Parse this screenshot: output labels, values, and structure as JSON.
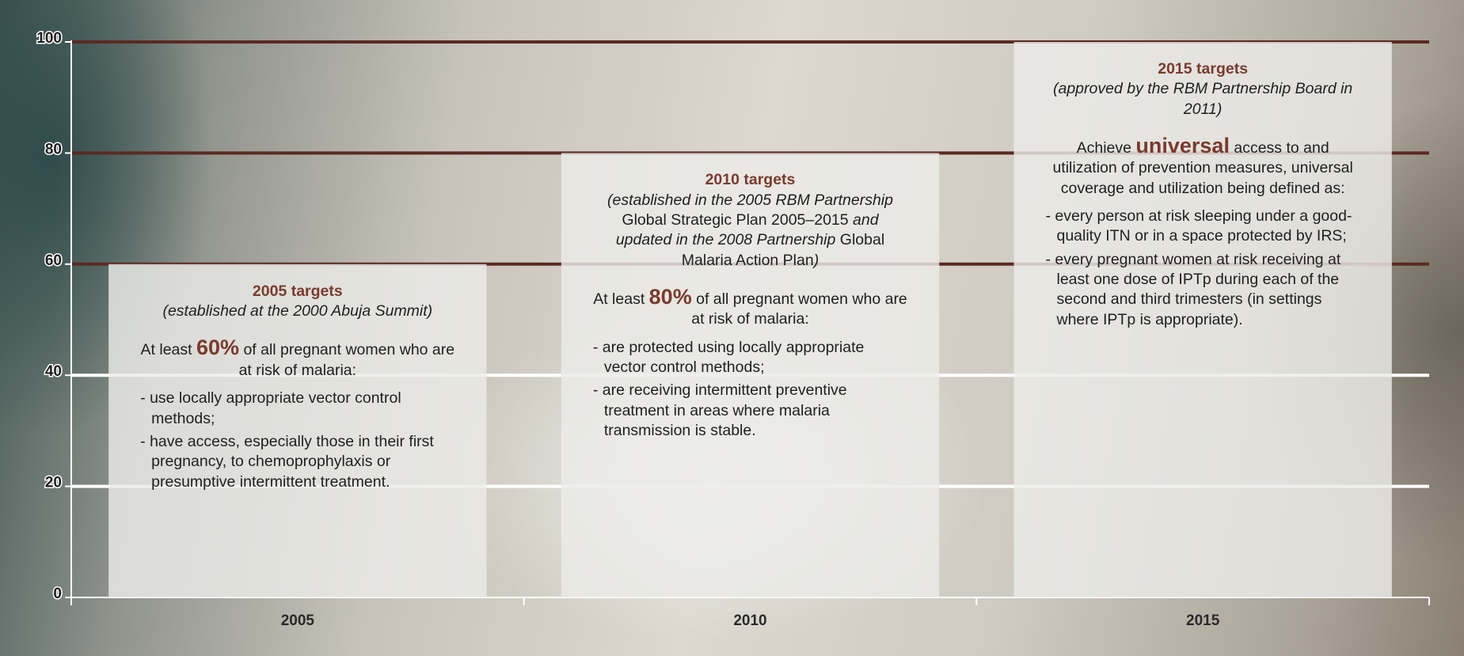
{
  "chart_data": {
    "type": "bar",
    "categories": [
      "2005",
      "2010",
      "2015"
    ],
    "values": [
      60,
      80,
      100
    ],
    "color": "rgba(236,236,232,0.82)",
    "ylim": [
      0,
      100
    ],
    "yticks": [
      0,
      20,
      40,
      60,
      80,
      100
    ],
    "grid": true,
    "grid_colors": [
      null,
      "#ffffff",
      "#ffffff",
      "#5a2a22",
      "#5a2a22",
      "#5a2a22"
    ],
    "annotations": [
      {
        "heading": "2005 targets",
        "subtitle": [
          {
            "text": "(established at the 2000 Abuja Summit)",
            "italic": true
          }
        ],
        "intro": {
          "before": "At least ",
          "highlight": "60%",
          "after": " of all pregnant women who are at risk of malaria:"
        },
        "bullets": [
          "- use locally appropriate vector control methods;",
          "- have access, especially those in their first pregnancy, to chemoprophylaxis or presumptive intermittent treatment."
        ]
      },
      {
        "heading": "2010 targets",
        "subtitle": [
          {
            "text": "(established in the 2005 RBM Partnership ",
            "italic": true
          },
          {
            "text": "Global Strategic Plan 2005–2015",
            "italic": false
          },
          {
            "text": " and updated in the 2008 Partnership ",
            "italic": true
          },
          {
            "text": "Global Malaria Action Plan",
            "italic": false
          },
          {
            "text": ")",
            "italic": true
          }
        ],
        "intro": {
          "before": "At least ",
          "highlight": "80%",
          "after": " of all pregnant women who are at risk of malaria:"
        },
        "bullets": [
          "- are protected using locally appropriate vector control methods;",
          "- are receiving intermittent preventive treatment in areas where malaria transmission is stable."
        ]
      },
      {
        "heading": "2015 targets",
        "subtitle": [
          {
            "text": "(approved by the RBM Partnership Board in 2011)",
            "italic": true
          }
        ],
        "intro": {
          "before": "Achieve ",
          "highlight": "universal",
          "after": " access to and utilization of prevention measures, universal coverage and utilization being defined as:"
        },
        "bullets": [
          "- every person at risk sleeping under a good-quality ITN or in a space protected by IRS;",
          "- every pregnant women at risk receiving at least one dose of IPTp during each of the second and third trimesters (in settings where IPTp is appropriate)."
        ]
      }
    ]
  }
}
